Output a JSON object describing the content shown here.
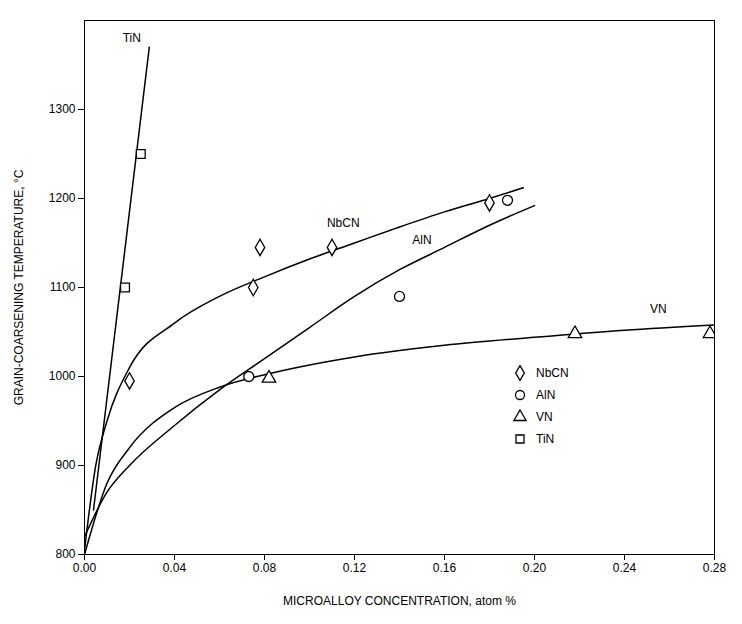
{
  "chart_data": {
    "type": "scatter",
    "x_label": "MICROALLOY CONCENTRATION, atom %",
    "y_label": "GRAIN-COARSENING TEMPERATURE, °C",
    "xlim": [
      0,
      0.28
    ],
    "ylim": [
      800,
      1400
    ],
    "xticks": [
      {
        "value": 0,
        "label": "0.00"
      },
      0.04,
      0.08,
      0.12,
      0.16,
      {
        "value": 0.2,
        "label": "0.20"
      },
      0.24,
      0.28
    ],
    "yticks": [
      800,
      900,
      1000,
      1100,
      1200,
      1300
    ],
    "grid": false,
    "legend": "lower right",
    "series": [
      {
        "name": "NbCN",
        "color": "#000000",
        "marker": "diamond",
        "x": [
          0.02,
          0.075,
          0.078,
          0.11,
          0.18
        ],
        "values": [
          995,
          1100,
          1145,
          1145,
          1195
        ],
        "fit_x": [
          0,
          0.005,
          0.01,
          0.02,
          0.04,
          0.06,
          0.08,
          0.1,
          0.12,
          0.14,
          0.16,
          0.18,
          0.195
        ],
        "fit_values": [
          805,
          900,
          950,
          1010,
          1060,
          1090,
          1112,
          1132,
          1150,
          1168,
          1185,
          1200,
          1212
        ]
      },
      {
        "name": "AlN",
        "color": "#000000",
        "marker": "circle",
        "x": [
          0.073,
          0.14,
          0.188
        ],
        "values": [
          1000,
          1090,
          1198
        ],
        "fit_x": [
          0,
          0.01,
          0.02,
          0.04,
          0.06,
          0.08,
          0.1,
          0.12,
          0.14,
          0.16,
          0.18,
          0.2
        ],
        "fit_values": [
          820,
          870,
          900,
          945,
          985,
          1020,
          1055,
          1090,
          1120,
          1145,
          1170,
          1192
        ]
      },
      {
        "name": "VN",
        "color": "#000000",
        "marker": "triangle",
        "x": [
          0.082,
          0.218,
          0.278
        ],
        "values": [
          998,
          1048,
          1048
        ],
        "fit_x": [
          0,
          0.01,
          0.02,
          0.04,
          0.06,
          0.08,
          0.1,
          0.12,
          0.16,
          0.2,
          0.24,
          0.28
        ],
        "fit_values": [
          800,
          880,
          920,
          965,
          988,
          1002,
          1013,
          1022,
          1035,
          1044,
          1052,
          1058
        ]
      },
      {
        "name": "TiN",
        "color": "#000000",
        "marker": "square",
        "x": [
          0.018,
          0.025
        ],
        "values": [
          1100,
          1250
        ],
        "fit_x": [
          0.004,
          0.0288
        ],
        "fit_values": [
          850,
          1370
        ]
      }
    ],
    "annotations": [
      {
        "text": "TiN",
        "x": 0.021,
        "y": 1380
      },
      {
        "text": "NbCN",
        "x": 0.115,
        "y": 1172
      },
      {
        "text": "AlN",
        "x": 0.15,
        "y": 1153
      },
      {
        "text": "VN",
        "x": 0.255,
        "y": 1076
      }
    ]
  }
}
